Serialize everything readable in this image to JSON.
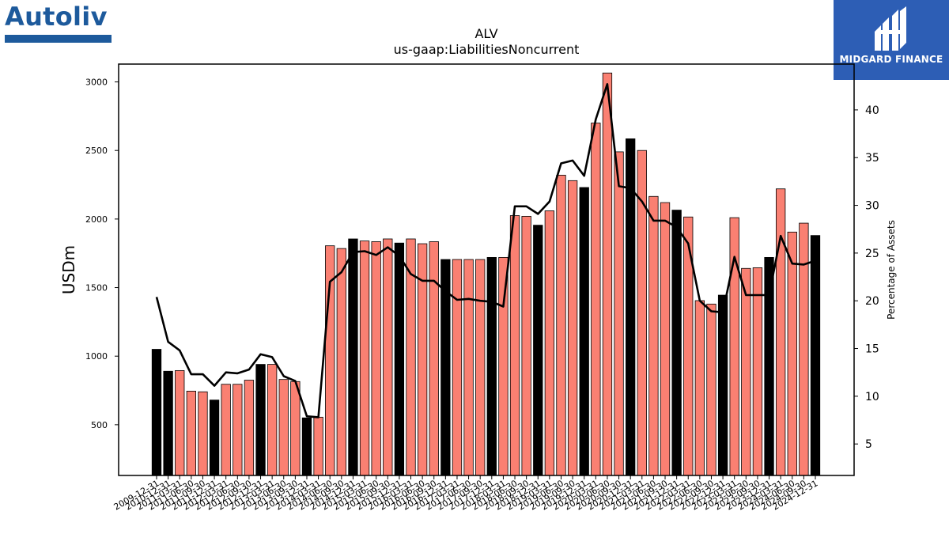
{
  "logos": {
    "left_text": "Autoliv",
    "right_text": "MIDGARD FINANCE"
  },
  "colors": {
    "bar_normal": "#fa8072",
    "bar_highlight": "#000000",
    "line": "#000000",
    "logo_left": "#1d5a9c",
    "logo_right_bg": "#2d5eb5"
  },
  "chart_data": {
    "type": "bar",
    "title": "ALV",
    "subtitle": "us-gaap:LiabilitiesNoncurrent",
    "ylabel": "USDm",
    "y2label": "Percentage of Assets",
    "ylim": [
      130,
      3130
    ],
    "y2lim": [
      1.7,
      44.8
    ],
    "yticks": [
      500,
      1000,
      1500,
      2000,
      2500,
      3000
    ],
    "y2ticks": [
      5,
      10,
      15,
      20,
      25,
      30,
      35,
      40
    ],
    "categories": [
      "2009-12-31",
      "2010-12-31",
      "2011-03-31",
      "2011-06-30",
      "2011-09-30",
      "2011-12-31",
      "2012-03-31",
      "2012-06-30",
      "2012-09-30",
      "2012-12-31",
      "2013-03-31",
      "2013-06-30",
      "2013-09-30",
      "2013-12-31",
      "2014-03-31",
      "2014-06-30",
      "2014-09-30",
      "2014-12-31",
      "2015-03-31",
      "2015-06-30",
      "2015-09-30",
      "2015-12-31",
      "2016-03-31",
      "2016-06-30",
      "2016-09-30",
      "2016-12-31",
      "2017-03-31",
      "2017-06-30",
      "2017-09-30",
      "2017-12-31",
      "2018-03-31",
      "2018-06-30",
      "2018-09-30",
      "2018-12-31",
      "2019-03-31",
      "2019-06-30",
      "2019-09-30",
      "2019-12-31",
      "2020-03-31",
      "2020-06-30",
      "2020-09-30",
      "2020-12-31",
      "2021-03-31",
      "2021-06-30",
      "2021-09-30",
      "2021-12-31",
      "2022-03-31",
      "2022-06-30",
      "2022-09-30",
      "2022-12-31",
      "2023-03-31",
      "2023-06-30",
      "2023-09-30",
      "2023-12-31",
      "2024-03-31",
      "2024-06-30",
      "2024-09-30",
      "2024-12-31"
    ],
    "values": [
      1050,
      890,
      895,
      745,
      740,
      680,
      795,
      795,
      825,
      940,
      940,
      830,
      815,
      550,
      555,
      1805,
      1785,
      1855,
      1840,
      1835,
      1855,
      1825,
      1855,
      1820,
      1835,
      1705,
      1705,
      1705,
      1705,
      1720,
      1720,
      2025,
      2020,
      1955,
      2060,
      2320,
      2280,
      2230,
      2700,
      3065,
      2490,
      2585,
      2500,
      2165,
      2120,
      2065,
      2015,
      1405,
      1380,
      1445,
      2010,
      1640,
      1645,
      1720,
      2220,
      1905,
      1970,
      1880
    ],
    "highlight": [
      1,
      1,
      0,
      0,
      0,
      1,
      0,
      0,
      0,
      1,
      0,
      0,
      0,
      1,
      0,
      0,
      0,
      1,
      0,
      0,
      0,
      1,
      0,
      0,
      0,
      1,
      0,
      0,
      0,
      1,
      0,
      0,
      0,
      1,
      0,
      0,
      0,
      1,
      0,
      0,
      0,
      1,
      0,
      0,
      0,
      1,
      0,
      0,
      0,
      1,
      0,
      0,
      0,
      1,
      0,
      0,
      0,
      1
    ],
    "series": [
      {
        "type": "line",
        "axis": "right",
        "values": [
          20.4,
          15.7,
          14.8,
          12.3,
          12.3,
          11.1,
          12.5,
          12.4,
          12.8,
          14.4,
          14.1,
          12.1,
          11.6,
          7.9,
          7.8,
          22.0,
          23.0,
          25.1,
          25.2,
          24.8,
          25.6,
          24.7,
          22.8,
          22.1,
          22.1,
          21.0,
          20.1,
          20.2,
          20.0,
          19.9,
          19.4,
          29.9,
          29.9,
          29.1,
          30.4,
          34.4,
          34.7,
          33.1,
          39.0,
          42.7,
          32.0,
          31.8,
          30.4,
          28.4,
          28.4,
          27.7,
          26.0,
          20.0,
          18.9,
          18.8,
          24.6,
          20.6,
          20.6,
          20.6,
          26.8,
          23.9,
          23.8,
          24.2
        ]
      }
    ]
  }
}
